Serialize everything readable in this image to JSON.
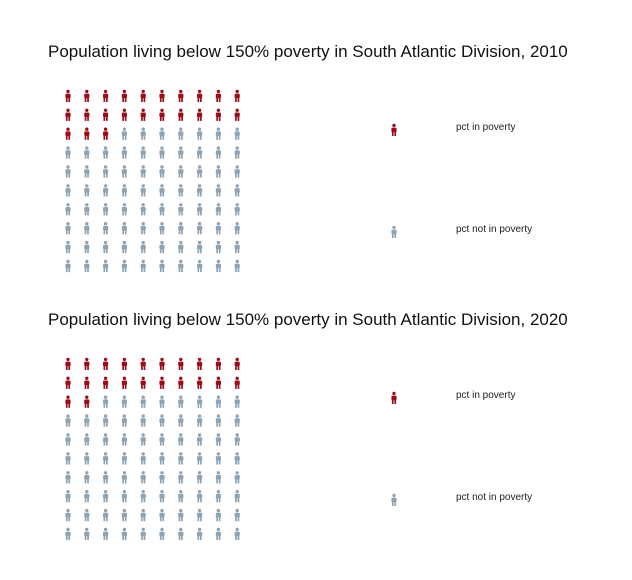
{
  "colors": {
    "in_poverty": "#9b0d18",
    "not_in_poverty": "#8ea3b4"
  },
  "icon": "person-icon",
  "chart_data": [
    {
      "type": "waffle",
      "title": "Population living below 150% poverty in South Atlantic Division, 2010",
      "grid": {
        "rows": 10,
        "cols": 10,
        "fill_order": "row-wise from top-left"
      },
      "series": [
        {
          "name": "pct in poverty",
          "value": 23
        },
        {
          "name": "pct not in poverty",
          "value": 77
        }
      ]
    },
    {
      "type": "waffle",
      "title": "Population living below 150% poverty in South Atlantic Division, 2020",
      "grid": {
        "rows": 10,
        "cols": 10,
        "fill_order": "row-wise from top-left"
      },
      "series": [
        {
          "name": "pct in poverty",
          "value": 22
        },
        {
          "name": "pct not in poverty",
          "value": 78
        }
      ]
    }
  ]
}
